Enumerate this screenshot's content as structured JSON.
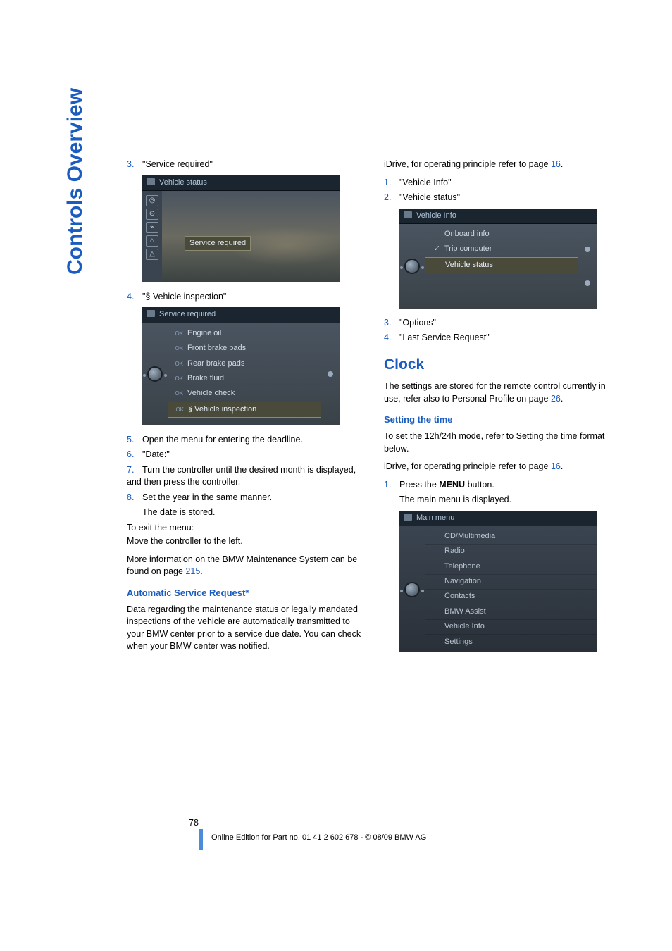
{
  "sidebar_title": "Controls Overview",
  "left": {
    "step3_num": "3.",
    "step3_text": "\"Service required\"",
    "ss1": {
      "title": "Vehicle status",
      "highlight": "Service required"
    },
    "step4_num": "4.",
    "step4_text": "\"§ Vehicle inspection\"",
    "ss2": {
      "title": "Service required",
      "rows": [
        {
          "ok": "OK",
          "label": "Engine oil"
        },
        {
          "ok": "OK",
          "label": "Front brake pads"
        },
        {
          "ok": "OK",
          "label": "Rear brake pads"
        },
        {
          "ok": "OK",
          "label": "Brake fluid"
        },
        {
          "ok": "OK",
          "label": "Vehicle check"
        },
        {
          "ok": "OK",
          "label": "§ Vehicle inspection",
          "sel": true
        }
      ]
    },
    "step5_num": "5.",
    "step5_text": "Open the menu for entering the deadline.",
    "step6_num": "6.",
    "step6_text": "\"Date:\"",
    "step7_num": "7.",
    "step7_text": "Turn the controller until the desired month is displayed, and then press the controller.",
    "step8_num": "8.",
    "step8_text": "Set the year in the same manner.",
    "step8_sub": "The date is stored.",
    "exit1": "To exit the menu:",
    "exit2": "Move the controller to the left.",
    "more_info_pre": "More information on the BMW Maintenance System can be found on page ",
    "more_info_link": "215",
    "more_info_post": ".",
    "asr_heading": "Automatic Service Request*",
    "asr_body": "Data regarding the maintenance status or legally mandated inspections of the vehicle are automatically transmitted to your BMW center prior to a service due date. You can check when your BMW center was notified."
  },
  "right": {
    "idrive_pre": "iDrive, for operating principle refer to page ",
    "idrive_link": "16",
    "idrive_post": ".",
    "r1_num": "1.",
    "r1_text": "\"Vehicle Info\"",
    "r2_num": "2.",
    "r2_text": "\"Vehicle status\"",
    "ss3": {
      "title": "Vehicle Info",
      "rows": [
        {
          "check": "",
          "label": "Onboard info"
        },
        {
          "check": "✓",
          "label": "Trip computer"
        },
        {
          "check": "",
          "label": "Vehicle status",
          "sel": true
        }
      ]
    },
    "r3_num": "3.",
    "r3_text": "\"Options\"",
    "r4_num": "4.",
    "r4_text": "\"Last Service Request\"",
    "clock_heading": "Clock",
    "clock_body_pre": "The settings are stored for the remote control currently in use, refer also to Personal Profile on page ",
    "clock_body_link": "26",
    "clock_body_post": ".",
    "setting_heading": "Setting the time",
    "setting_body": "To set the 12h/24h mode, refer to Setting the time format below.",
    "idrive2_pre": "iDrive, for operating principle refer to page ",
    "idrive2_link": "16",
    "idrive2_post": ".",
    "s1_num": "1.",
    "s1_text_pre": "Press the ",
    "s1_text_bold": "MENU",
    "s1_text_post": " button.",
    "s1_sub": "The main menu is displayed.",
    "ss4": {
      "title": "Main menu",
      "rows": [
        "CD/Multimedia",
        "Radio",
        "Telephone",
        "Navigation",
        "Contacts",
        "BMW Assist",
        "Vehicle Info",
        "Settings"
      ]
    }
  },
  "footer": {
    "page": "78",
    "line": "Online Edition for Part no. 01 41 2 602 678 - © 08/09 BMW AG"
  }
}
